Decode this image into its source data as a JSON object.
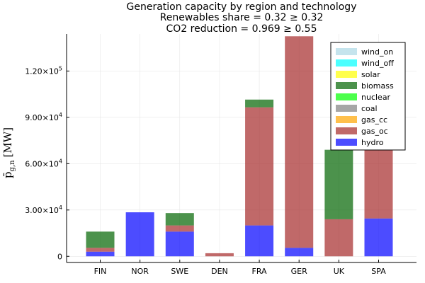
{
  "chart_data": {
    "type": "bar",
    "stacked": true,
    "title": "Generation capacity by region and technology",
    "subtitle_lines": [
      "Renewables share = 0.32 ≥ 0.32",
      "CO2 reduction = 0.969 ≥ 0.55"
    ],
    "xlabel": "",
    "ylabel": "p̄g,n [MW]",
    "ylabel_parts": {
      "main": "p̄",
      "subscript": "g,n",
      "unit": "[MW]"
    },
    "categories": [
      "FIN",
      "NOR",
      "SWE",
      "DEN",
      "FRA",
      "GER",
      "UK",
      "SPA"
    ],
    "ylim": [
      -4000,
      144000
    ],
    "yticks": [
      0,
      30000,
      60000,
      90000,
      120000
    ],
    "ytick_labels": [
      {
        "mantissa": "0",
        "exponent": ""
      },
      {
        "mantissa": "3.00×10",
        "exponent": "4"
      },
      {
        "mantissa": "6.00×10",
        "exponent": "4"
      },
      {
        "mantissa": "9.00×10",
        "exponent": "4"
      },
      {
        "mantissa": "1.20×10",
        "exponent": "5"
      }
    ],
    "grid": true,
    "legend_position": "top-right",
    "legend_order": [
      "wind_on",
      "wind_off",
      "solar",
      "biomass",
      "nuclear",
      "coal",
      "gas_cc",
      "gas_oc",
      "hydro"
    ],
    "stack_order": [
      "hydro",
      "gas_oc",
      "gas_cc",
      "coal",
      "nuclear",
      "biomass",
      "solar",
      "wind_off",
      "wind_on"
    ],
    "colors": {
      "wind_on": "#add8e6",
      "wind_off": "#00ffff",
      "solar": "#ffff00",
      "biomass": "#006400",
      "nuclear": "#00ff00",
      "coal": "#808080",
      "gas_cc": "#ffa500",
      "gas_oc": "#a52a2a",
      "hydro": "#0000ff"
    },
    "series": [
      {
        "name": "wind_on",
        "values": [
          0,
          0,
          0,
          0,
          0,
          0,
          0,
          0
        ]
      },
      {
        "name": "wind_off",
        "values": [
          0,
          0,
          0,
          0,
          0,
          0,
          0,
          0
        ]
      },
      {
        "name": "solar",
        "values": [
          0,
          0,
          0,
          0,
          0,
          0,
          0,
          0
        ]
      },
      {
        "name": "biomass",
        "values": [
          10500,
          0,
          8000,
          0,
          5000,
          0,
          45000,
          0
        ]
      },
      {
        "name": "nuclear",
        "values": [
          0,
          0,
          0,
          0,
          0,
          0,
          0,
          0
        ]
      },
      {
        "name": "coal",
        "values": [
          0,
          0,
          0,
          0,
          0,
          0,
          0,
          0
        ]
      },
      {
        "name": "gas_cc",
        "values": [
          0,
          0,
          0,
          0,
          0,
          0,
          0,
          0
        ]
      },
      {
        "name": "gas_oc",
        "values": [
          2500,
          0,
          4000,
          2000,
          76500,
          137000,
          24000,
          47500
        ]
      },
      {
        "name": "hydro",
        "values": [
          3000,
          28500,
          16000,
          0,
          20000,
          5500,
          0,
          24500
        ]
      }
    ]
  }
}
